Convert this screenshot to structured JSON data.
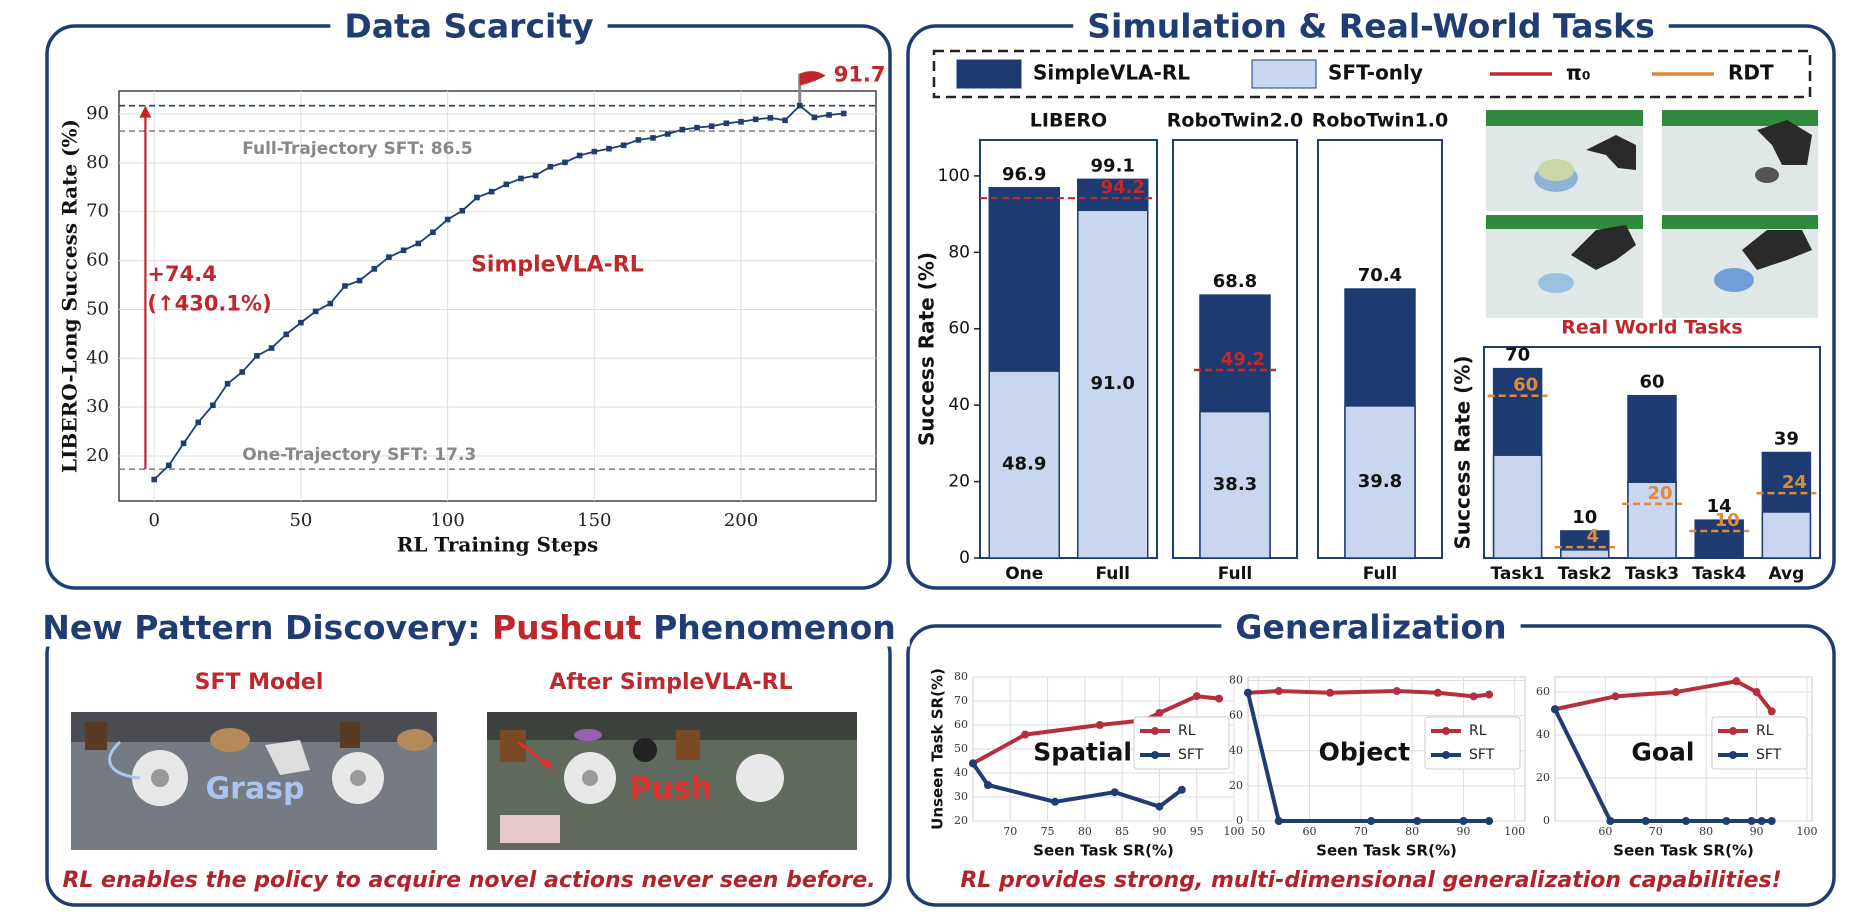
{
  "chart_data": [
    {
      "type": "line",
      "title": "Data Scarcity",
      "xlabel": "RL Training Steps",
      "ylabel": "LIBERO-Long Success Rate (%)",
      "x": [
        0,
        5,
        10,
        15,
        20,
        25,
        30,
        35,
        40,
        45,
        50,
        55,
        60,
        65,
        70,
        75,
        80,
        85,
        90,
        95,
        100,
        105,
        110,
        115,
        120,
        125,
        130,
        135,
        140,
        145,
        150,
        155,
        160,
        165,
        170,
        175,
        180,
        185,
        190,
        195,
        200,
        205,
        210,
        215,
        220,
        225,
        230,
        235
      ],
      "xlim": [
        -12,
        246
      ],
      "ylim": [
        10.8,
        94.7
      ],
      "xticks": [
        0,
        50,
        100,
        150,
        200
      ],
      "yticks": [
        20,
        30,
        40,
        50,
        60,
        70,
        80,
        90
      ],
      "grid": true,
      "series": [
        {
          "name": "SimpleVLA-RL",
          "color": "#1f3d73",
          "values": [
            15.2,
            18.1,
            22.6,
            26.9,
            30.4,
            34.8,
            37.2,
            40.5,
            42.1,
            44.9,
            47.3,
            49.6,
            51.2,
            54.8,
            55.9,
            58.3,
            60.7,
            62.1,
            63.5,
            65.8,
            68.4,
            70.2,
            72.9,
            74.1,
            75.6,
            76.8,
            77.4,
            79.2,
            80.1,
            81.5,
            82.3,
            82.9,
            83.6,
            84.7,
            85.1,
            85.9,
            86.8,
            87.2,
            87.5,
            88.1,
            88.4,
            88.9,
            89.2,
            88.7,
            91.7,
            89.3,
            89.8,
            90.1
          ]
        }
      ],
      "hlines": [
        {
          "value": 86.5,
          "label": "Full-Trajectory SFT: 86.5",
          "color": "#888888"
        },
        {
          "value": 17.3,
          "label": "One-Trajectory SFT: 17.3",
          "color": "#888888"
        },
        {
          "value": 91.7,
          "label": "91.7",
          "color": "#1f3d73",
          "marker": "flag"
        }
      ],
      "gain": {
        "label": "+74.4",
        "sublabel": "(↑430.1%)"
      }
    },
    {
      "type": "bar",
      "title": "LIBERO",
      "categories": [
        "One",
        "Full"
      ],
      "ylabel": "Success Rate (%)",
      "ylim": [
        0,
        109.4
      ],
      "yticks": [
        0,
        20,
        40,
        60,
        80,
        100
      ],
      "series": [
        {
          "color": "#1d3b70",
          "values": [
            96.9,
            99.1
          ]
        },
        {
          "color": "#c9d6ef",
          "values": [
            48.9,
            91.0
          ],
          "value_labels": [
            "48.9",
            "91.0"
          ]
        }
      ],
      "ref": {
        "color": "#c62828",
        "values": [
          94.2
        ]
      }
    },
    {
      "type": "bar",
      "title": "RoboTwin2.0",
      "categories": [
        "Full"
      ],
      "ylim": [
        0,
        109.4
      ],
      "series": [
        {
          "color": "#1d3b70",
          "values": [
            68.8
          ]
        },
        {
          "color": "#c9d6ef",
          "values": [
            38.3
          ],
          "value_labels": [
            "38.3"
          ]
        }
      ],
      "ref": {
        "color": "#c62828",
        "values": [
          49.2
        ]
      }
    },
    {
      "type": "bar",
      "title": "RoboTwin1.0",
      "categories": [
        "Full"
      ],
      "ylim": [
        0,
        109.4
      ],
      "series": [
        {
          "color": "#1d3b70",
          "values": [
            70.4
          ]
        },
        {
          "color": "#c9d6ef",
          "values": [
            39.8
          ],
          "value_labels": [
            "39.8"
          ]
        }
      ]
    },
    {
      "type": "bar",
      "title": "Real World Tasks",
      "categories": [
        "Task1",
        "Task2",
        "Task3",
        "Task4",
        "Avg"
      ],
      "ylabel": "Success Rate (%)",
      "ylim": [
        0,
        78
      ],
      "series": [
        {
          "color": "#1d3b70",
          "values": [
            70,
            10,
            60,
            14,
            39
          ]
        },
        {
          "color": "#c9d6ef",
          "values": [
            38,
            3,
            28,
            0,
            17
          ]
        }
      ],
      "ref": {
        "color": "#e0893a",
        "values": [
          60,
          4,
          20,
          10,
          24
        ]
      }
    },
    {
      "type": "line",
      "title": "Spatial",
      "xlabel": "Seen Task SR(%)",
      "ylabel": "Unseen Task SR(%)",
      "xlim": [
        65,
        100
      ],
      "ylim": [
        20,
        80
      ],
      "xticks": [
        70,
        75,
        80,
        85,
        90,
        95,
        100
      ],
      "yticks": [
        20,
        30,
        40,
        50,
        60,
        70,
        80
      ],
      "grid": true,
      "legend": "right",
      "series": [
        {
          "name": "RL",
          "color": "#b5303c",
          "x": [
            65,
            72,
            82,
            88,
            90,
            95,
            98
          ],
          "values": [
            44,
            56,
            60,
            62,
            65,
            72,
            71
          ]
        },
        {
          "name": "SFT",
          "color": "#1f3d73",
          "x": [
            65,
            67,
            76,
            84,
            90,
            93
          ],
          "values": [
            44,
            35,
            28,
            32,
            26,
            33
          ]
        }
      ]
    },
    {
      "type": "line",
      "title": "Object",
      "xlabel": "Seen Task SR(%)",
      "xlim": [
        48,
        102
      ],
      "ylim": [
        0,
        82
      ],
      "xticks": [
        50,
        60,
        70,
        80,
        90,
        100
      ],
      "yticks": [
        0,
        20,
        40,
        60,
        80
      ],
      "grid": true,
      "legend": "right",
      "series": [
        {
          "name": "RL",
          "color": "#b5303c",
          "x": [
            48,
            54,
            64,
            77,
            85,
            92,
            95
          ],
          "values": [
            73,
            74,
            73,
            74,
            73,
            71,
            72
          ]
        },
        {
          "name": "SFT",
          "color": "#1f3d73",
          "x": [
            48,
            54,
            72,
            81,
            90,
            95
          ],
          "values": [
            73,
            0,
            0,
            0,
            0,
            0
          ]
        }
      ]
    },
    {
      "type": "line",
      "title": "Goal",
      "xlabel": "Seen Task SR(%)",
      "xlim": [
        50,
        101
      ],
      "ylim": [
        0,
        67
      ],
      "xticks": [
        60,
        70,
        80,
        90,
        100
      ],
      "yticks": [
        0,
        20,
        40,
        60
      ],
      "grid": true,
      "legend": "right",
      "series": [
        {
          "name": "RL",
          "color": "#b5303c",
          "x": [
            50,
            62,
            74,
            86,
            90,
            93
          ],
          "values": [
            52,
            58,
            60,
            65,
            60,
            51
          ]
        },
        {
          "name": "SFT",
          "color": "#1f3d73",
          "x": [
            50,
            61,
            68,
            76,
            84,
            89,
            91,
            93
          ],
          "values": [
            52,
            0,
            0,
            0,
            0,
            0,
            0,
            0
          ]
        }
      ]
    }
  ],
  "panels": {
    "simulation": {
      "title": "Simulation & Real-World Tasks",
      "legend": [
        {
          "name": "SimpleVLA-RL",
          "color": "#1d3b70",
          "kind": "bar"
        },
        {
          "name": "SFT-only",
          "color": "#c9d6ef",
          "kind": "bar"
        },
        {
          "name": "π₀",
          "color": "#c62828",
          "kind": "line"
        },
        {
          "name": "RDT",
          "color": "#e0893a",
          "kind": "line"
        }
      ]
    },
    "pushcut": {
      "title": [
        "New Pattern Discovery: ",
        "Pushcut",
        " Phenomenon"
      ],
      "left_label": "SFT Model",
      "right_label": "After SimpleVLA-RL",
      "left_action": "Grasp",
      "right_action": "Push",
      "caption": "RL enables the policy to acquire novel actions never seen before."
    },
    "generalization": {
      "title": "Generalization",
      "caption": "RL provides strong, multi-dimensional generalization capabilities!"
    }
  }
}
